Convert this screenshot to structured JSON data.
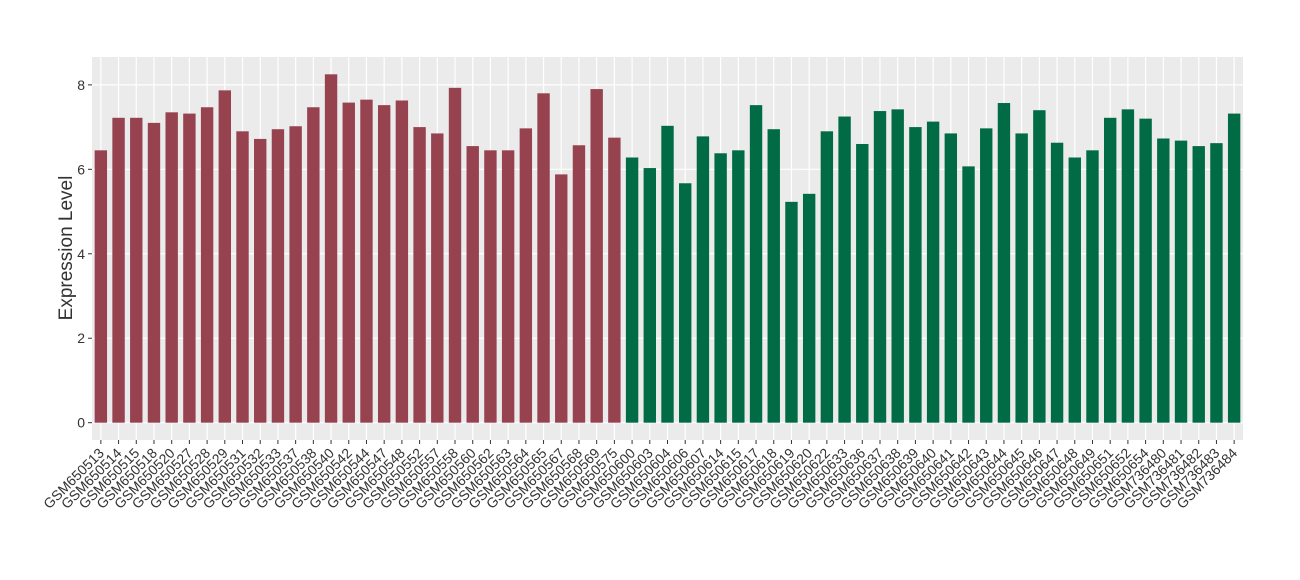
{
  "chart_data": {
    "type": "bar",
    "y_label": "Expression Level",
    "categories": [
      "GSM650513",
      "GSM650514",
      "GSM650515",
      "GSM650518",
      "GSM650520",
      "GSM650527",
      "GSM650528",
      "GSM650529",
      "GSM650531",
      "GSM650532",
      "GSM650533",
      "GSM650537",
      "GSM650538",
      "GSM650540",
      "GSM650542",
      "GSM650544",
      "GSM650547",
      "GSM650548",
      "GSM650552",
      "GSM650557",
      "GSM650558",
      "GSM650560",
      "GSM650562",
      "GSM650563",
      "GSM650564",
      "GSM650565",
      "GSM650567",
      "GSM650568",
      "GSM650569",
      "GSM650575",
      "GSM650600",
      "GSM650603",
      "GSM650604",
      "GSM650606",
      "GSM650607",
      "GSM650614",
      "GSM650615",
      "GSM650617",
      "GSM650618",
      "GSM650619",
      "GSM650620",
      "GSM650622",
      "GSM650633",
      "GSM650636",
      "GSM650637",
      "GSM650638",
      "GSM650639",
      "GSM650640",
      "GSM650641",
      "GSM650642",
      "GSM650643",
      "GSM650644",
      "GSM650645",
      "GSM650646",
      "GSM650647",
      "GSM650648",
      "GSM650649",
      "GSM650651",
      "GSM650652",
      "GSM650654",
      "GSM736480",
      "GSM736481",
      "GSM736482",
      "GSM736483",
      "GSM736484"
    ],
    "values": [
      6.45,
      7.22,
      7.22,
      7.1,
      7.35,
      7.32,
      7.47,
      7.87,
      6.9,
      6.72,
      6.95,
      7.02,
      7.47,
      8.25,
      7.58,
      7.65,
      7.52,
      7.63,
      7.0,
      6.85,
      7.93,
      6.55,
      6.45,
      6.45,
      6.97,
      7.8,
      5.88,
      6.57,
      7.9,
      6.75,
      6.28,
      6.03,
      7.03,
      5.67,
      6.78,
      6.38,
      6.45,
      7.52,
      6.95,
      5.23,
      5.42,
      6.9,
      7.25,
      6.6,
      7.38,
      7.42,
      7.0,
      7.13,
      6.85,
      6.07,
      6.97,
      7.57,
      6.85,
      7.4,
      6.63,
      6.28,
      6.45,
      7.22,
      7.42,
      7.2,
      6.73,
      6.68,
      6.55,
      6.62,
      7.32
    ],
    "bar_colors": [
      "#96424f",
      "#96424f",
      "#96424f",
      "#96424f",
      "#96424f",
      "#96424f",
      "#96424f",
      "#96424f",
      "#96424f",
      "#96424f",
      "#96424f",
      "#96424f",
      "#96424f",
      "#96424f",
      "#96424f",
      "#96424f",
      "#96424f",
      "#96424f",
      "#96424f",
      "#96424f",
      "#96424f",
      "#96424f",
      "#96424f",
      "#96424f",
      "#96424f",
      "#96424f",
      "#96424f",
      "#96424f",
      "#96424f",
      "#96424f",
      "#006b45",
      "#006b45",
      "#006b45",
      "#006b45",
      "#006b45",
      "#006b45",
      "#006b45",
      "#006b45",
      "#006b45",
      "#006b45",
      "#006b45",
      "#006b45",
      "#006b45",
      "#006b45",
      "#006b45",
      "#006b45",
      "#006b45",
      "#006b45",
      "#006b45",
      "#006b45",
      "#006b45",
      "#006b45",
      "#006b45",
      "#006b45",
      "#006b45",
      "#006b45",
      "#006b45",
      "#006b45",
      "#006b45",
      "#006b45",
      "#006b45",
      "#006b45",
      "#006b45",
      "#006b45",
      "#006b45"
    ],
    "ylim": [
      -0.41,
      8.66
    ],
    "yticks": [
      0,
      2,
      4,
      6,
      8
    ],
    "grid": true
  }
}
